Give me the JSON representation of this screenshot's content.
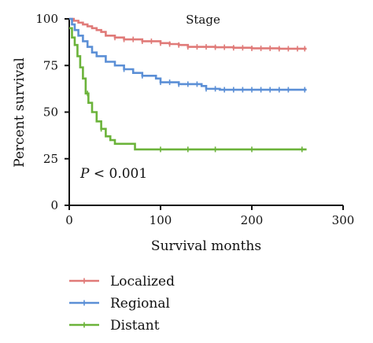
{
  "chart_data": {
    "type": "line",
    "title": "Stage",
    "xlabel": "Survival months",
    "ylabel": "Percent survival",
    "xlim": [
      0,
      300
    ],
    "ylim": [
      0,
      100
    ],
    "x_ticks": [
      "0",
      "100",
      "200",
      "300"
    ],
    "y_ticks": [
      "0",
      "25",
      "50",
      "75",
      "100"
    ],
    "annotation": {
      "italic": "P",
      "text": " < 0.001"
    },
    "series": [
      {
        "name": "Localized",
        "color": "#e07a78",
        "points": [
          [
            0,
            100
          ],
          [
            5,
            99
          ],
          [
            10,
            98
          ],
          [
            15,
            97
          ],
          [
            20,
            96
          ],
          [
            25,
            95
          ],
          [
            30,
            94
          ],
          [
            35,
            93
          ],
          [
            40,
            91
          ],
          [
            50,
            90
          ],
          [
            60,
            89
          ],
          [
            80,
            88
          ],
          [
            100,
            87
          ],
          [
            110,
            86.5
          ],
          [
            120,
            86
          ],
          [
            130,
            85
          ],
          [
            160,
            84.8
          ],
          [
            180,
            84.5
          ],
          [
            200,
            84.2
          ],
          [
            230,
            84
          ],
          [
            260,
            84
          ]
        ],
        "censored": [
          50,
          60,
          70,
          80,
          90,
          100,
          110,
          120,
          130,
          140,
          150,
          160,
          170,
          180,
          190,
          200,
          210,
          220,
          230,
          240,
          250,
          258
        ]
      },
      {
        "name": "Regional",
        "color": "#5b8fd6",
        "points": [
          [
            0,
            100
          ],
          [
            3,
            97
          ],
          [
            6,
            94
          ],
          [
            10,
            91
          ],
          [
            15,
            88
          ],
          [
            20,
            85
          ],
          [
            25,
            82
          ],
          [
            30,
            80
          ],
          [
            40,
            77
          ],
          [
            50,
            75
          ],
          [
            60,
            73
          ],
          [
            70,
            71
          ],
          [
            80,
            69.5
          ],
          [
            95,
            68
          ],
          [
            100,
            66
          ],
          [
            120,
            65
          ],
          [
            140,
            65
          ],
          [
            145,
            64
          ],
          [
            150,
            62.5
          ],
          [
            165,
            62
          ],
          [
            200,
            62
          ],
          [
            260,
            62
          ]
        ],
        "censored": [
          60,
          80,
          100,
          110,
          120,
          130,
          140,
          150,
          160,
          170,
          180,
          190,
          200,
          210,
          220,
          230,
          240,
          258
        ]
      },
      {
        "name": "Distant",
        "color": "#6bb33a",
        "points": [
          [
            0,
            95
          ],
          [
            3,
            90
          ],
          [
            6,
            86
          ],
          [
            9,
            80
          ],
          [
            12,
            74
          ],
          [
            15,
            68
          ],
          [
            18,
            60
          ],
          [
            21,
            55
          ],
          [
            25,
            50
          ],
          [
            30,
            45
          ],
          [
            35,
            41
          ],
          [
            40,
            37
          ],
          [
            45,
            35
          ],
          [
            50,
            33
          ],
          [
            70,
            33
          ],
          [
            72,
            30
          ],
          [
            100,
            30
          ],
          [
            260,
            30
          ]
        ],
        "censored": [
          20,
          35,
          100,
          130,
          160,
          200,
          255
        ]
      }
    ],
    "legend": "bottom-left"
  }
}
